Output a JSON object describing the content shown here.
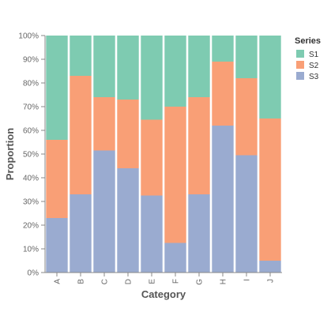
{
  "chart_data": {
    "type": "bar",
    "stacked": true,
    "normalized": true,
    "title": "",
    "xlabel": "Category",
    "ylabel": "Proportion",
    "categories": [
      "A",
      "B",
      "C",
      "D",
      "E",
      "F",
      "G",
      "H",
      "I",
      "J"
    ],
    "series": [
      {
        "name": "S3",
        "color": "#9aabd0",
        "values": [
          0.23,
          0.33,
          0.515,
          0.44,
          0.325,
          0.125,
          0.33,
          0.62,
          0.495,
          0.05
        ]
      },
      {
        "name": "S2",
        "color": "#f99f76",
        "values": [
          0.33,
          0.5,
          0.225,
          0.29,
          0.32,
          0.575,
          0.41,
          0.27,
          0.325,
          0.6
        ]
      },
      {
        "name": "S1",
        "color": "#7ecbb1",
        "values": [
          0.44,
          0.17,
          0.26,
          0.27,
          0.355,
          0.3,
          0.26,
          0.11,
          0.18,
          0.35
        ]
      }
    ],
    "ylim": [
      0,
      1
    ],
    "yticks": [
      "0%",
      "10%",
      "20%",
      "30%",
      "40%",
      "50%",
      "60%",
      "70%",
      "80%",
      "90%",
      "100%"
    ],
    "grid": false,
    "legend": {
      "title": "Series",
      "position": "right",
      "entries": [
        "S1",
        "S2",
        "S3"
      ]
    }
  }
}
